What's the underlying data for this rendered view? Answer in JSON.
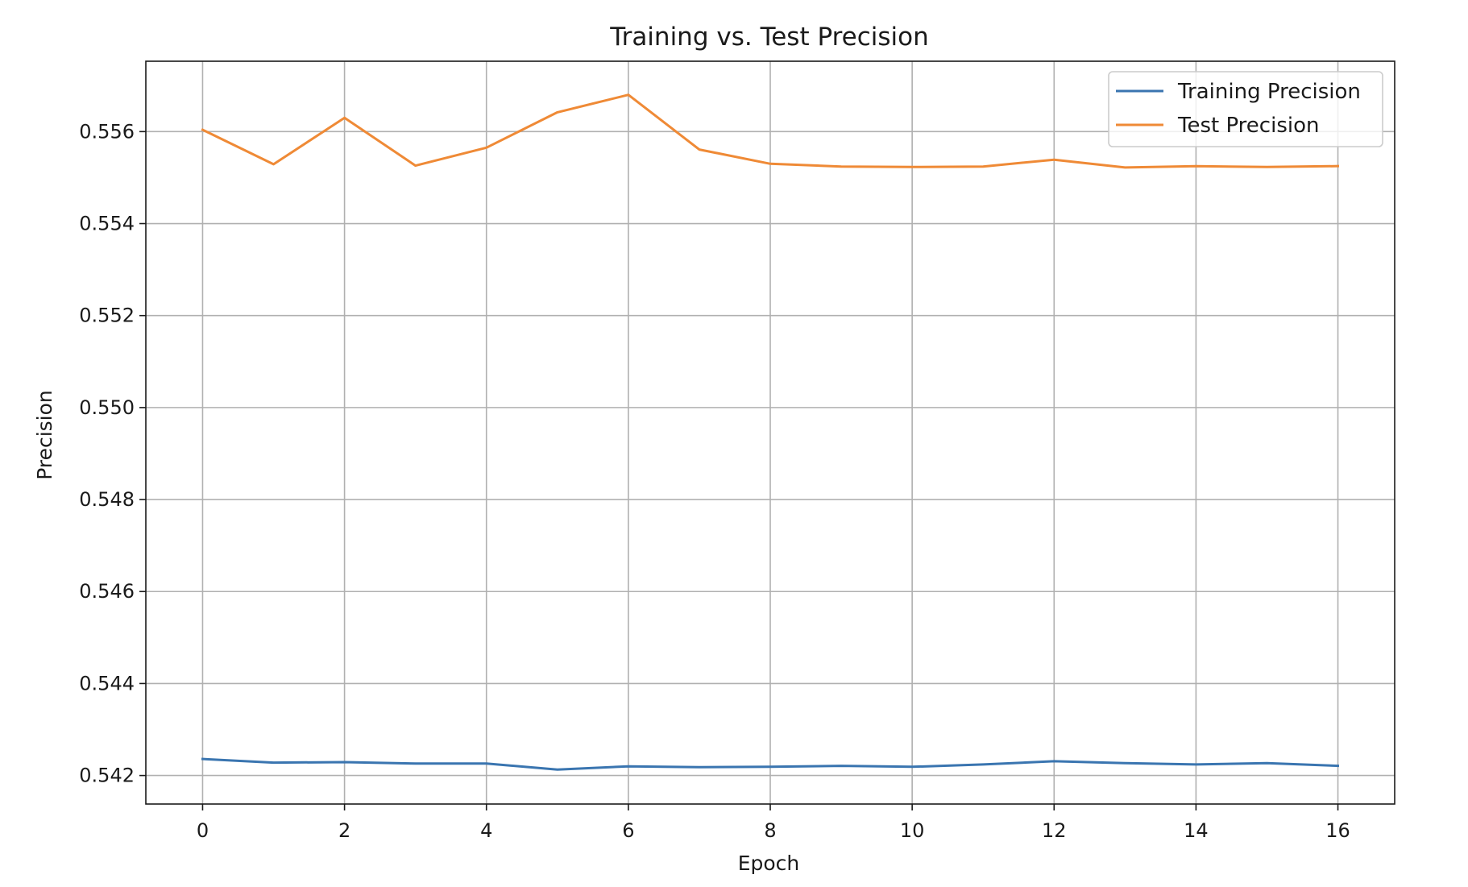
{
  "chart_data": {
    "type": "line",
    "title": "Training vs. Test Precision",
    "xlabel": "Epoch",
    "ylabel": "Precision",
    "x": [
      0,
      1,
      2,
      3,
      4,
      5,
      6,
      7,
      8,
      9,
      10,
      11,
      12,
      13,
      14,
      15,
      16
    ],
    "xlim": [
      -0.8,
      16.8
    ],
    "ylim": [
      0.54138,
      0.55753
    ],
    "xticks": [
      0,
      2,
      4,
      6,
      8,
      10,
      12,
      14,
      16
    ],
    "xtick_labels": [
      "0",
      "2",
      "4",
      "6",
      "8",
      "10",
      "12",
      "14",
      "16"
    ],
    "yticks": [
      0.542,
      0.544,
      0.546,
      0.548,
      0.55,
      0.552,
      0.554,
      0.556
    ],
    "ytick_labels": [
      "0.542",
      "0.544",
      "0.546",
      "0.548",
      "0.550",
      "0.552",
      "0.554",
      "0.556"
    ],
    "grid": true,
    "legend_position": "upper right",
    "series": [
      {
        "name": "Training Precision",
        "color": "#3a75b0",
        "values": [
          0.54236,
          0.54228,
          0.54229,
          0.54226,
          0.54226,
          0.54213,
          0.5422,
          0.54218,
          0.54219,
          0.54221,
          0.54219,
          0.54224,
          0.54231,
          0.54227,
          0.54224,
          0.54227,
          0.54221
        ]
      },
      {
        "name": "Test Precision",
        "color": "#ef8a36",
        "values": [
          0.55604,
          0.55529,
          0.5563,
          0.55526,
          0.55565,
          0.55642,
          0.5568,
          0.55561,
          0.5553,
          0.55524,
          0.55523,
          0.55524,
          0.55539,
          0.55522,
          0.55525,
          0.55523,
          0.55525
        ]
      }
    ]
  }
}
